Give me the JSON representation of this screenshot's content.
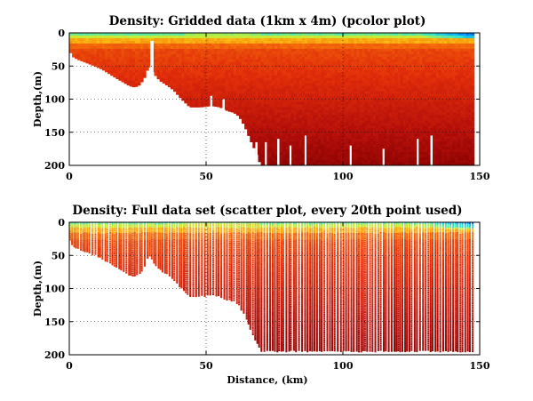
{
  "chart_data": [
    {
      "type": "heatmap",
      "title": "Density: Gridded data (1km x 4m) (pcolor plot)",
      "xlabel": "",
      "ylabel": "Depth,(m)",
      "xlim": [
        0,
        150
      ],
      "ylim": [
        0,
        200
      ],
      "y_reversed": true,
      "xticks": [
        0,
        50,
        100,
        150
      ],
      "yticks": [
        0,
        50,
        100,
        150,
        200
      ],
      "grid": "dotted",
      "colormap": "jet",
      "bottom_profile_km_m": [
        [
          0,
          25
        ],
        [
          1,
          35
        ],
        [
          3,
          40
        ],
        [
          8,
          48
        ],
        [
          12,
          55
        ],
        [
          17,
          68
        ],
        [
          22,
          80
        ],
        [
          24,
          82
        ],
        [
          26,
          78
        ],
        [
          27,
          70
        ],
        [
          28,
          65
        ],
        [
          29,
          48
        ],
        [
          31,
          62
        ],
        [
          33,
          72
        ],
        [
          36,
          80
        ],
        [
          38,
          86
        ],
        [
          41,
          100
        ],
        [
          44,
          112
        ],
        [
          48,
          112
        ],
        [
          52,
          110
        ],
        [
          55,
          112
        ],
        [
          58,
          118
        ],
        [
          60,
          120
        ],
        [
          62,
          126
        ],
        [
          64,
          140
        ],
        [
          66,
          160
        ],
        [
          68,
          178
        ],
        [
          70,
          200
        ],
        [
          148,
          200
        ]
      ]
    },
    {
      "type": "scatter",
      "title": "Density: Full data set (scatter plot, every 20th point used)",
      "xlabel": "Distance, (km)",
      "ylabel": "Depth,(m)",
      "xlim": [
        0,
        150
      ],
      "ylim": [
        0,
        200
      ],
      "y_reversed": true,
      "xticks": [
        0,
        50,
        100,
        150
      ],
      "yticks": [
        0,
        50,
        100,
        150,
        200
      ],
      "grid": "dotted",
      "colormap": "jet",
      "bottom_profile_km_m": [
        [
          0,
          25
        ],
        [
          1,
          35
        ],
        [
          3,
          40
        ],
        [
          8,
          48
        ],
        [
          12,
          55
        ],
        [
          17,
          68
        ],
        [
          22,
          80
        ],
        [
          24,
          82
        ],
        [
          26,
          78
        ],
        [
          27,
          70
        ],
        [
          28,
          65
        ],
        [
          29,
          48
        ],
        [
          31,
          62
        ],
        [
          33,
          72
        ],
        [
          36,
          80
        ],
        [
          38,
          86
        ],
        [
          41,
          100
        ],
        [
          44,
          112
        ],
        [
          48,
          112
        ],
        [
          52,
          110
        ],
        [
          55,
          112
        ],
        [
          58,
          118
        ],
        [
          60,
          120
        ],
        [
          62,
          126
        ],
        [
          64,
          140
        ],
        [
          66,
          160
        ],
        [
          68,
          178
        ],
        [
          70,
          195
        ],
        [
          148,
          195
        ]
      ]
    }
  ]
}
